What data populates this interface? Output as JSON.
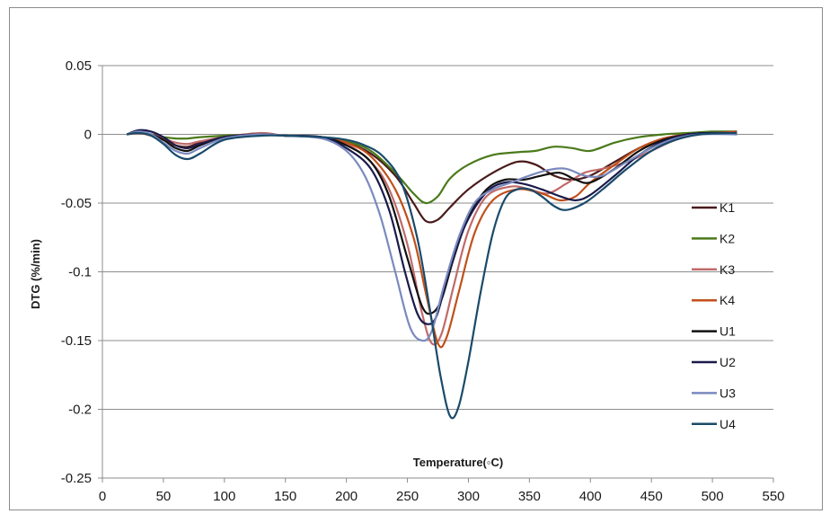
{
  "chart_data": {
    "type": "line",
    "title": "",
    "xlabel": "Temperature(◦C)",
    "ylabel": "DTG (%/min)",
    "xlim": [
      0,
      550
    ],
    "ylim": [
      -0.25,
      0.05
    ],
    "xticks": [
      0,
      50,
      100,
      150,
      200,
      250,
      300,
      350,
      400,
      450,
      500,
      550
    ],
    "yticks": [
      0.05,
      0,
      -0.05,
      -0.1,
      -0.15,
      -0.2,
      -0.25
    ],
    "ytick_labels": [
      "0.05",
      "0",
      "-0.05",
      "-0.1",
      "-0.15",
      "-0.2",
      "-0.25"
    ],
    "grid": "horizontal",
    "legend_position": "right",
    "series": [
      {
        "name": "K1",
        "color": "#4a1a1a",
        "points": [
          [
            20,
            0
          ],
          [
            30,
            0.002
          ],
          [
            40,
            0
          ],
          [
            50,
            -0.004
          ],
          [
            60,
            -0.008
          ],
          [
            70,
            -0.009
          ],
          [
            80,
            -0.006
          ],
          [
            100,
            -0.002
          ],
          [
            130,
            0
          ],
          [
            150,
            -0.001
          ],
          [
            180,
            -0.002
          ],
          [
            200,
            -0.006
          ],
          [
            220,
            -0.014
          ],
          [
            240,
            -0.03
          ],
          [
            255,
            -0.05
          ],
          [
            265,
            -0.063
          ],
          [
            275,
            -0.062
          ],
          [
            285,
            -0.053
          ],
          [
            300,
            -0.04
          ],
          [
            320,
            -0.028
          ],
          [
            340,
            -0.02
          ],
          [
            355,
            -0.022
          ],
          [
            370,
            -0.03
          ],
          [
            385,
            -0.033
          ],
          [
            400,
            -0.03
          ],
          [
            420,
            -0.02
          ],
          [
            440,
            -0.01
          ],
          [
            460,
            -0.003
          ],
          [
            480,
            0
          ],
          [
            500,
            0.001
          ],
          [
            520,
            0.002
          ]
        ]
      },
      {
        "name": "K2",
        "color": "#4a7a1a",
        "points": [
          [
            20,
            0
          ],
          [
            30,
            0.001
          ],
          [
            40,
            0
          ],
          [
            50,
            -0.002
          ],
          [
            60,
            -0.003
          ],
          [
            70,
            -0.003
          ],
          [
            80,
            -0.002
          ],
          [
            100,
            -0.001
          ],
          [
            130,
            0
          ],
          [
            150,
            -0.001
          ],
          [
            180,
            -0.002
          ],
          [
            200,
            -0.005
          ],
          [
            220,
            -0.012
          ],
          [
            240,
            -0.028
          ],
          [
            255,
            -0.043
          ],
          [
            265,
            -0.05
          ],
          [
            275,
            -0.045
          ],
          [
            285,
            -0.032
          ],
          [
            300,
            -0.022
          ],
          [
            320,
            -0.015
          ],
          [
            340,
            -0.013
          ],
          [
            355,
            -0.012
          ],
          [
            370,
            -0.009
          ],
          [
            385,
            -0.01
          ],
          [
            400,
            -0.012
          ],
          [
            420,
            -0.006
          ],
          [
            440,
            -0.002
          ],
          [
            460,
            0
          ],
          [
            480,
            0.001
          ],
          [
            500,
            0.002
          ],
          [
            520,
            0.002
          ]
        ]
      },
      {
        "name": "K3",
        "color": "#c06a6a",
        "points": [
          [
            20,
            0
          ],
          [
            30,
            0.001
          ],
          [
            40,
            0
          ],
          [
            50,
            -0.003
          ],
          [
            60,
            -0.006
          ],
          [
            70,
            -0.007
          ],
          [
            80,
            -0.005
          ],
          [
            100,
            -0.002
          ],
          [
            130,
            0.001
          ],
          [
            150,
            -0.001
          ],
          [
            180,
            -0.002
          ],
          [
            200,
            -0.007
          ],
          [
            220,
            -0.02
          ],
          [
            235,
            -0.04
          ],
          [
            250,
            -0.08
          ],
          [
            262,
            -0.13
          ],
          [
            270,
            -0.152
          ],
          [
            278,
            -0.145
          ],
          [
            288,
            -0.11
          ],
          [
            300,
            -0.07
          ],
          [
            315,
            -0.045
          ],
          [
            335,
            -0.038
          ],
          [
            350,
            -0.04
          ],
          [
            365,
            -0.043
          ],
          [
            380,
            -0.036
          ],
          [
            395,
            -0.028
          ],
          [
            410,
            -0.025
          ],
          [
            430,
            -0.02
          ],
          [
            450,
            -0.012
          ],
          [
            470,
            -0.004
          ],
          [
            490,
            0
          ],
          [
            520,
            0.001
          ]
        ]
      },
      {
        "name": "K4",
        "color": "#c0501a",
        "points": [
          [
            20,
            0
          ],
          [
            30,
            0.001
          ],
          [
            40,
            -0.001
          ],
          [
            50,
            -0.004
          ],
          [
            60,
            -0.008
          ],
          [
            70,
            -0.01
          ],
          [
            80,
            -0.007
          ],
          [
            100,
            -0.002
          ],
          [
            130,
            0
          ],
          [
            150,
            -0.001
          ],
          [
            180,
            -0.002
          ],
          [
            200,
            -0.006
          ],
          [
            220,
            -0.016
          ],
          [
            240,
            -0.04
          ],
          [
            255,
            -0.075
          ],
          [
            265,
            -0.115
          ],
          [
            275,
            -0.152
          ],
          [
            282,
            -0.148
          ],
          [
            292,
            -0.115
          ],
          [
            305,
            -0.072
          ],
          [
            320,
            -0.048
          ],
          [
            340,
            -0.04
          ],
          [
            360,
            -0.043
          ],
          [
            375,
            -0.048
          ],
          [
            388,
            -0.045
          ],
          [
            400,
            -0.035
          ],
          [
            420,
            -0.022
          ],
          [
            440,
            -0.01
          ],
          [
            460,
            -0.003
          ],
          [
            480,
            0
          ],
          [
            500,
            0.001
          ],
          [
            520,
            0.002
          ]
        ]
      },
      {
        "name": "U1",
        "color": "#101010",
        "points": [
          [
            20,
            0
          ],
          [
            30,
            0.002
          ],
          [
            40,
            0
          ],
          [
            50,
            -0.004
          ],
          [
            60,
            -0.01
          ],
          [
            70,
            -0.012
          ],
          [
            80,
            -0.008
          ],
          [
            100,
            -0.002
          ],
          [
            130,
            0
          ],
          [
            150,
            -0.001
          ],
          [
            180,
            -0.002
          ],
          [
            200,
            -0.008
          ],
          [
            220,
            -0.02
          ],
          [
            235,
            -0.045
          ],
          [
            250,
            -0.09
          ],
          [
            262,
            -0.125
          ],
          [
            270,
            -0.13
          ],
          [
            278,
            -0.12
          ],
          [
            288,
            -0.09
          ],
          [
            300,
            -0.06
          ],
          [
            315,
            -0.04
          ],
          [
            330,
            -0.033
          ],
          [
            345,
            -0.033
          ],
          [
            360,
            -0.03
          ],
          [
            375,
            -0.028
          ],
          [
            388,
            -0.033
          ],
          [
            400,
            -0.035
          ],
          [
            420,
            -0.025
          ],
          [
            440,
            -0.012
          ],
          [
            460,
            -0.004
          ],
          [
            480,
            0
          ],
          [
            500,
            0.001
          ],
          [
            520,
            0
          ]
        ]
      },
      {
        "name": "U2",
        "color": "#1a1a4a",
        "points": [
          [
            20,
            0
          ],
          [
            30,
            0.003
          ],
          [
            40,
            0.002
          ],
          [
            50,
            -0.002
          ],
          [
            60,
            -0.008
          ],
          [
            70,
            -0.01
          ],
          [
            80,
            -0.007
          ],
          [
            100,
            -0.002
          ],
          [
            130,
            0
          ],
          [
            150,
            -0.001
          ],
          [
            180,
            -0.002
          ],
          [
            200,
            -0.01
          ],
          [
            220,
            -0.025
          ],
          [
            235,
            -0.055
          ],
          [
            248,
            -0.1
          ],
          [
            258,
            -0.13
          ],
          [
            266,
            -0.138
          ],
          [
            274,
            -0.132
          ],
          [
            284,
            -0.1
          ],
          [
            298,
            -0.065
          ],
          [
            315,
            -0.042
          ],
          [
            330,
            -0.035
          ],
          [
            345,
            -0.036
          ],
          [
            360,
            -0.04
          ],
          [
            375,
            -0.045
          ],
          [
            388,
            -0.048
          ],
          [
            400,
            -0.044
          ],
          [
            420,
            -0.03
          ],
          [
            440,
            -0.015
          ],
          [
            460,
            -0.005
          ],
          [
            480,
            0
          ],
          [
            500,
            0.001
          ],
          [
            520,
            0.001
          ]
        ]
      },
      {
        "name": "U3",
        "color": "#7a8abf",
        "points": [
          [
            20,
            0
          ],
          [
            30,
            0.002
          ],
          [
            40,
            0
          ],
          [
            50,
            -0.006
          ],
          [
            60,
            -0.012
          ],
          [
            70,
            -0.014
          ],
          [
            80,
            -0.01
          ],
          [
            100,
            -0.003
          ],
          [
            130,
            0
          ],
          [
            150,
            -0.001
          ],
          [
            180,
            -0.003
          ],
          [
            200,
            -0.012
          ],
          [
            215,
            -0.03
          ],
          [
            228,
            -0.06
          ],
          [
            240,
            -0.1
          ],
          [
            252,
            -0.14
          ],
          [
            262,
            -0.15
          ],
          [
            270,
            -0.143
          ],
          [
            280,
            -0.11
          ],
          [
            292,
            -0.075
          ],
          [
            305,
            -0.05
          ],
          [
            320,
            -0.04
          ],
          [
            335,
            -0.035
          ],
          [
            350,
            -0.03
          ],
          [
            365,
            -0.026
          ],
          [
            380,
            -0.025
          ],
          [
            395,
            -0.03
          ],
          [
            410,
            -0.03
          ],
          [
            430,
            -0.02
          ],
          [
            450,
            -0.01
          ],
          [
            470,
            -0.003
          ],
          [
            490,
            0
          ],
          [
            520,
            0
          ]
        ]
      },
      {
        "name": "U4",
        "color": "#1a4a6a",
        "points": [
          [
            20,
            0
          ],
          [
            30,
            0.001
          ],
          [
            40,
            -0.001
          ],
          [
            50,
            -0.007
          ],
          [
            60,
            -0.015
          ],
          [
            70,
            -0.018
          ],
          [
            80,
            -0.014
          ],
          [
            100,
            -0.004
          ],
          [
            130,
            -0.001
          ],
          [
            150,
            -0.001
          ],
          [
            180,
            -0.002
          ],
          [
            200,
            -0.004
          ],
          [
            215,
            -0.008
          ],
          [
            230,
            -0.016
          ],
          [
            245,
            -0.035
          ],
          [
            258,
            -0.075
          ],
          [
            268,
            -0.125
          ],
          [
            277,
            -0.175
          ],
          [
            285,
            -0.205
          ],
          [
            292,
            -0.198
          ],
          [
            300,
            -0.165
          ],
          [
            310,
            -0.115
          ],
          [
            320,
            -0.072
          ],
          [
            330,
            -0.047
          ],
          [
            340,
            -0.04
          ],
          [
            350,
            -0.04
          ],
          [
            360,
            -0.045
          ],
          [
            370,
            -0.052
          ],
          [
            380,
            -0.055
          ],
          [
            395,
            -0.05
          ],
          [
            410,
            -0.04
          ],
          [
            430,
            -0.025
          ],
          [
            450,
            -0.012
          ],
          [
            470,
            -0.004
          ],
          [
            490,
            0
          ],
          [
            520,
            0.001
          ]
        ]
      }
    ]
  }
}
